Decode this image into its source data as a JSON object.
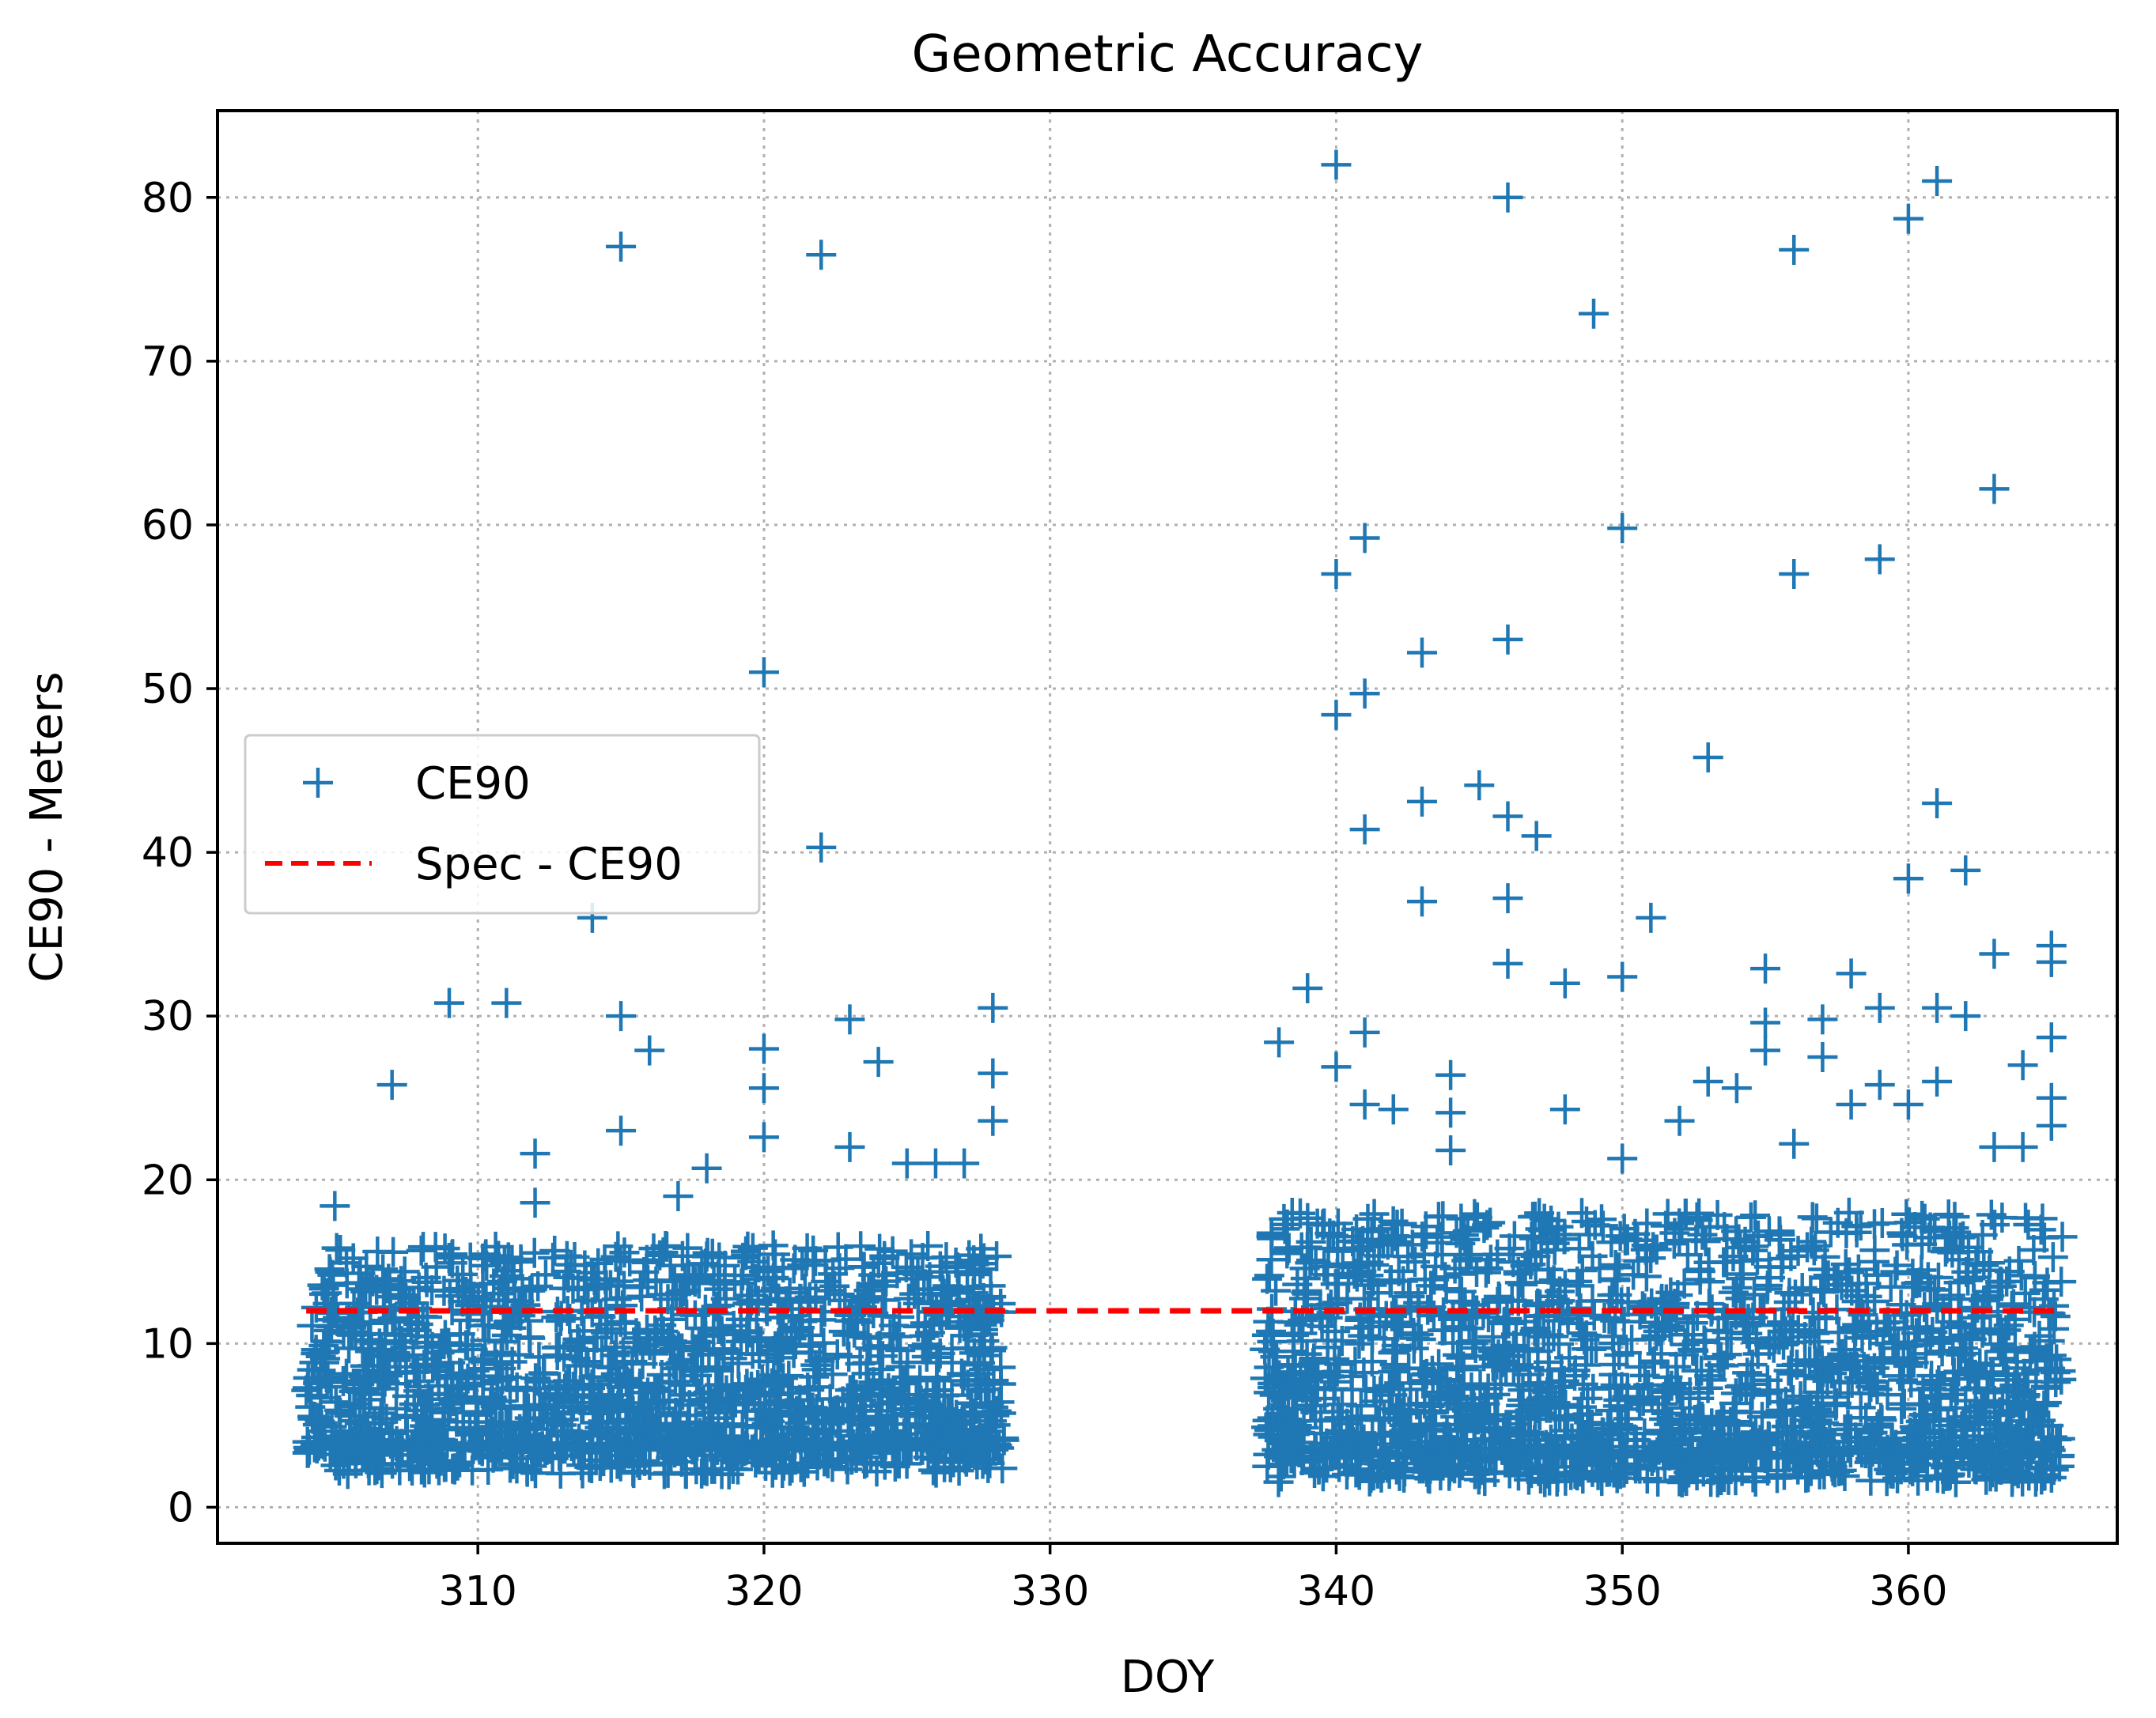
{
  "chart_data": {
    "type": "scatter",
    "title": "Geometric Accuracy",
    "xlabel": "DOY",
    "ylabel": "CE90 - Meters",
    "xlim": [
      300.9,
      367.3
    ],
    "ylim": [
      -2.2,
      85.3
    ],
    "xticks": [
      310,
      320,
      330,
      340,
      350,
      360
    ],
    "yticks": [
      0,
      10,
      20,
      30,
      40,
      50,
      60,
      70,
      80
    ],
    "grid": true,
    "legend_position": "center-left",
    "colors": {
      "scatter": "#1f77b4",
      "spec": "#ff0000"
    },
    "series": [
      {
        "name": "CE90",
        "kind": "scatter",
        "marker": "plus",
        "outliers": [
          [
            305,
            18.4
          ],
          [
            307,
            25.8
          ],
          [
            309,
            30.8
          ],
          [
            311,
            30.8
          ],
          [
            312,
            21.6
          ],
          [
            312,
            18.6
          ],
          [
            314,
            36.0
          ],
          [
            315,
            77.0
          ],
          [
            315,
            30.0
          ],
          [
            315,
            23.0
          ],
          [
            316,
            27.9
          ],
          [
            317,
            19.0
          ],
          [
            318,
            20.7
          ],
          [
            320,
            51.0
          ],
          [
            320,
            28.0
          ],
          [
            320,
            25.6
          ],
          [
            320,
            22.6
          ],
          [
            322,
            76.5
          ],
          [
            322,
            40.3
          ],
          [
            323,
            29.8
          ],
          [
            323,
            22.0
          ],
          [
            324,
            27.2
          ],
          [
            325,
            21.0
          ],
          [
            326,
            21.0
          ],
          [
            327,
            21.0
          ],
          [
            328,
            30.5
          ],
          [
            328,
            26.5
          ],
          [
            328,
            23.6
          ],
          [
            338,
            28.4
          ],
          [
            339,
            31.7
          ],
          [
            340,
            82.0
          ],
          [
            340,
            57.0
          ],
          [
            340,
            48.4
          ],
          [
            340,
            26.9
          ],
          [
            341,
            59.2
          ],
          [
            341,
            49.7
          ],
          [
            341,
            41.4
          ],
          [
            341,
            29.0
          ],
          [
            341,
            24.6
          ],
          [
            342,
            24.3
          ],
          [
            343,
            52.2
          ],
          [
            343,
            43.1
          ],
          [
            343,
            37.0
          ],
          [
            344,
            26.4
          ],
          [
            344,
            24.1
          ],
          [
            344,
            21.8
          ],
          [
            345,
            44.1
          ],
          [
            346,
            80.0
          ],
          [
            346,
            53.0
          ],
          [
            346,
            42.2
          ],
          [
            346,
            37.2
          ],
          [
            346,
            33.2
          ],
          [
            347,
            41.0
          ],
          [
            348,
            32.0
          ],
          [
            348,
            24.3
          ],
          [
            349,
            72.9
          ],
          [
            350,
            59.8
          ],
          [
            350,
            32.4
          ],
          [
            350,
            21.3
          ],
          [
            351,
            36.0
          ],
          [
            352,
            23.6
          ],
          [
            353,
            45.8
          ],
          [
            353,
            26.0
          ],
          [
            354,
            25.6
          ],
          [
            355,
            32.9
          ],
          [
            355,
            29.6
          ],
          [
            355,
            27.9
          ],
          [
            356,
            76.8
          ],
          [
            356,
            57.0
          ],
          [
            356,
            22.2
          ],
          [
            357,
            29.8
          ],
          [
            357,
            27.5
          ],
          [
            358,
            32.6
          ],
          [
            358,
            24.6
          ],
          [
            359,
            57.9
          ],
          [
            359,
            30.5
          ],
          [
            359,
            25.8
          ],
          [
            360,
            78.7
          ],
          [
            360,
            38.4
          ],
          [
            360,
            24.6
          ],
          [
            361,
            81.0
          ],
          [
            361,
            43.0
          ],
          [
            361,
            30.5
          ],
          [
            361,
            26.0
          ],
          [
            362,
            38.9
          ],
          [
            362,
            30.0
          ],
          [
            363,
            62.2
          ],
          [
            363,
            33.8
          ],
          [
            363,
            22.0
          ],
          [
            364,
            27.0
          ],
          [
            364,
            22.0
          ],
          [
            365,
            34.3
          ],
          [
            365,
            33.3
          ],
          [
            365,
            28.7
          ],
          [
            365,
            25.0
          ],
          [
            365,
            23.3
          ]
        ],
        "dense_bands": [
          {
            "doy_range": [
              304,
              328.4
            ],
            "value_range": [
              2,
              16
            ]
          },
          {
            "doy_range": [
              337.5,
              365.4
            ],
            "value_range": [
              1.5,
              18
            ]
          }
        ]
      },
      {
        "name": "Spec - CE90",
        "kind": "line",
        "style": "dashed",
        "y": 12,
        "x_range": [
          304,
          365.4
        ]
      }
    ]
  }
}
